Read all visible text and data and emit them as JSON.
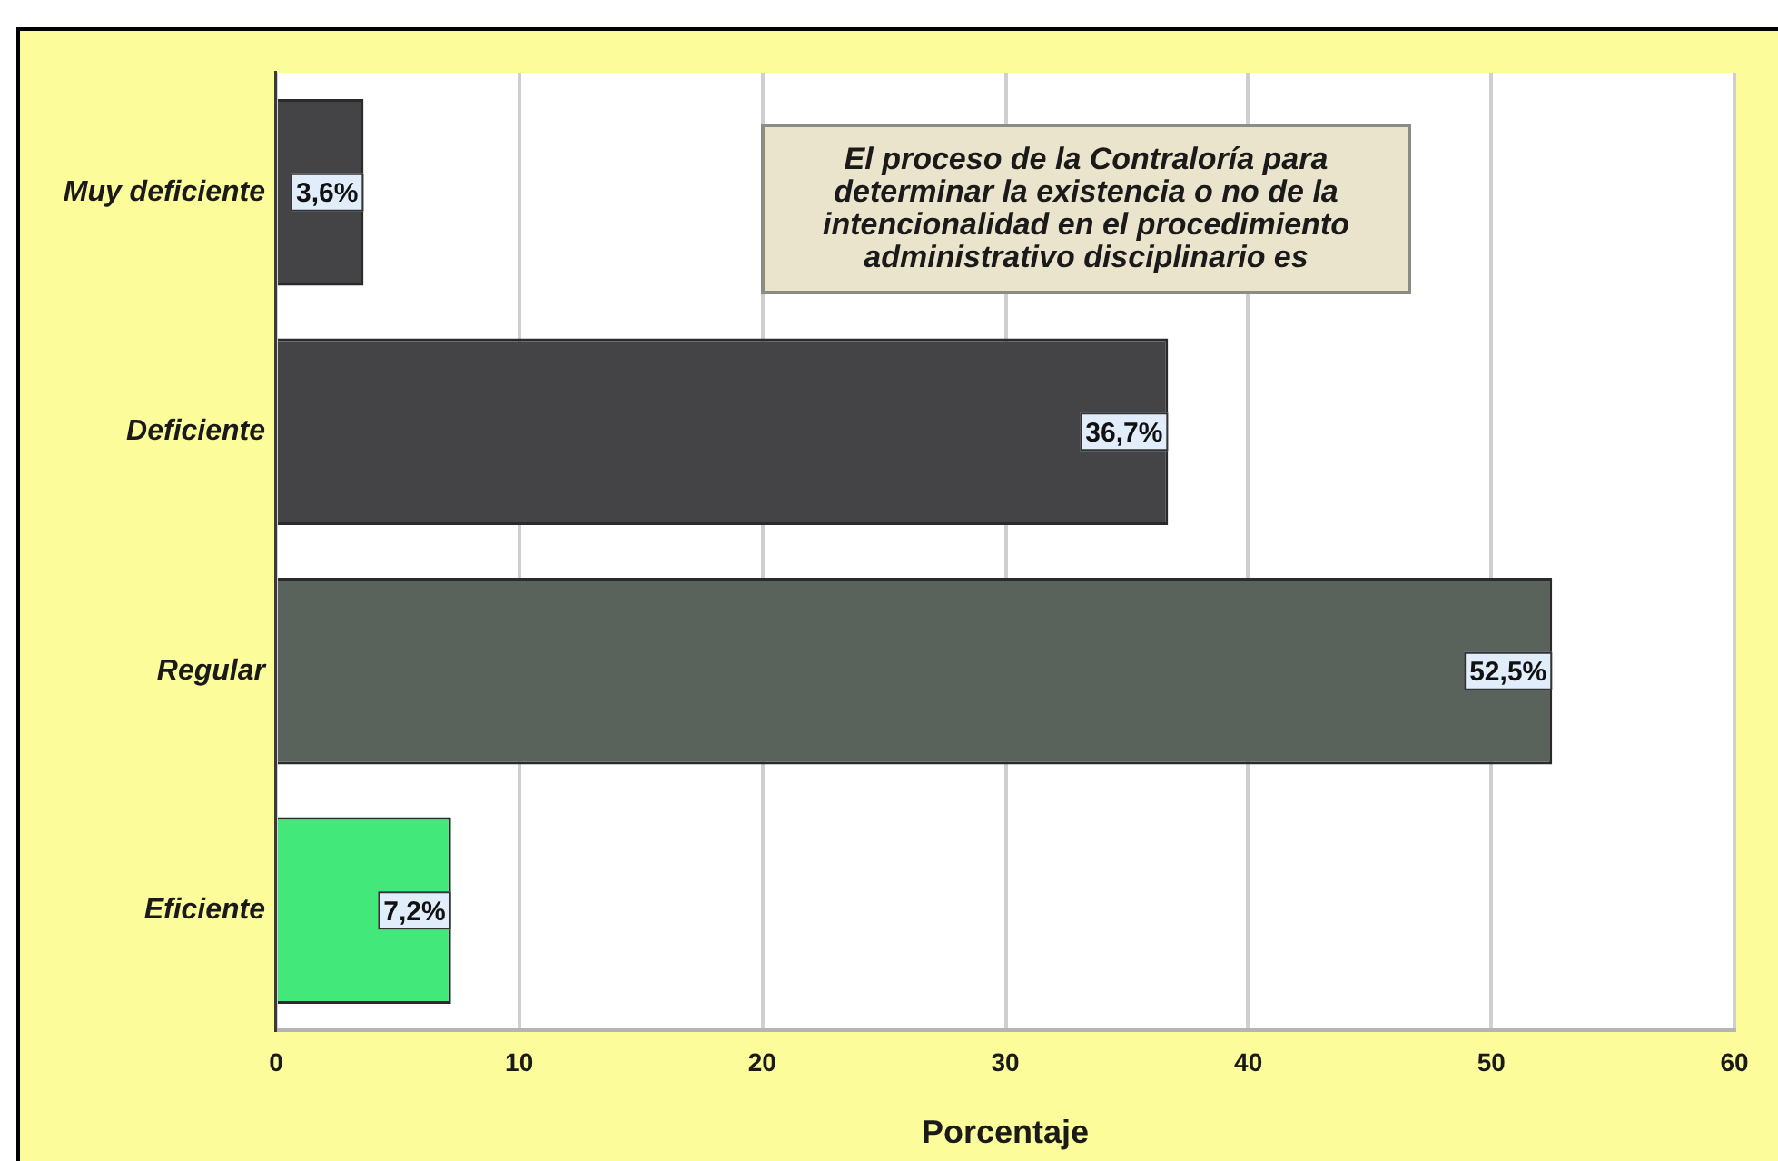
{
  "chart_data": {
    "type": "bar",
    "orientation": "horizontal",
    "title": "El proceso de la Contraloría para determinar la existencia o no de la intencionalidad en el procedimiento administrativo disciplinario es",
    "categories": [
      "Muy deficiente",
      "Deficiente",
      "Regular",
      "Eficiente"
    ],
    "values": [
      3.6,
      36.7,
      52.5,
      7.2
    ],
    "value_labels": [
      "3,6%",
      "36,7%",
      "52,5%",
      "7,2%"
    ],
    "colors": [
      "#444446",
      "#444446",
      "#5a625c",
      "#42e87a"
    ],
    "xlabel": "Porcentaje",
    "xlim": [
      0,
      60
    ],
    "xticks": [
      0,
      10,
      20,
      30,
      40,
      50,
      60
    ],
    "grid": "x"
  }
}
